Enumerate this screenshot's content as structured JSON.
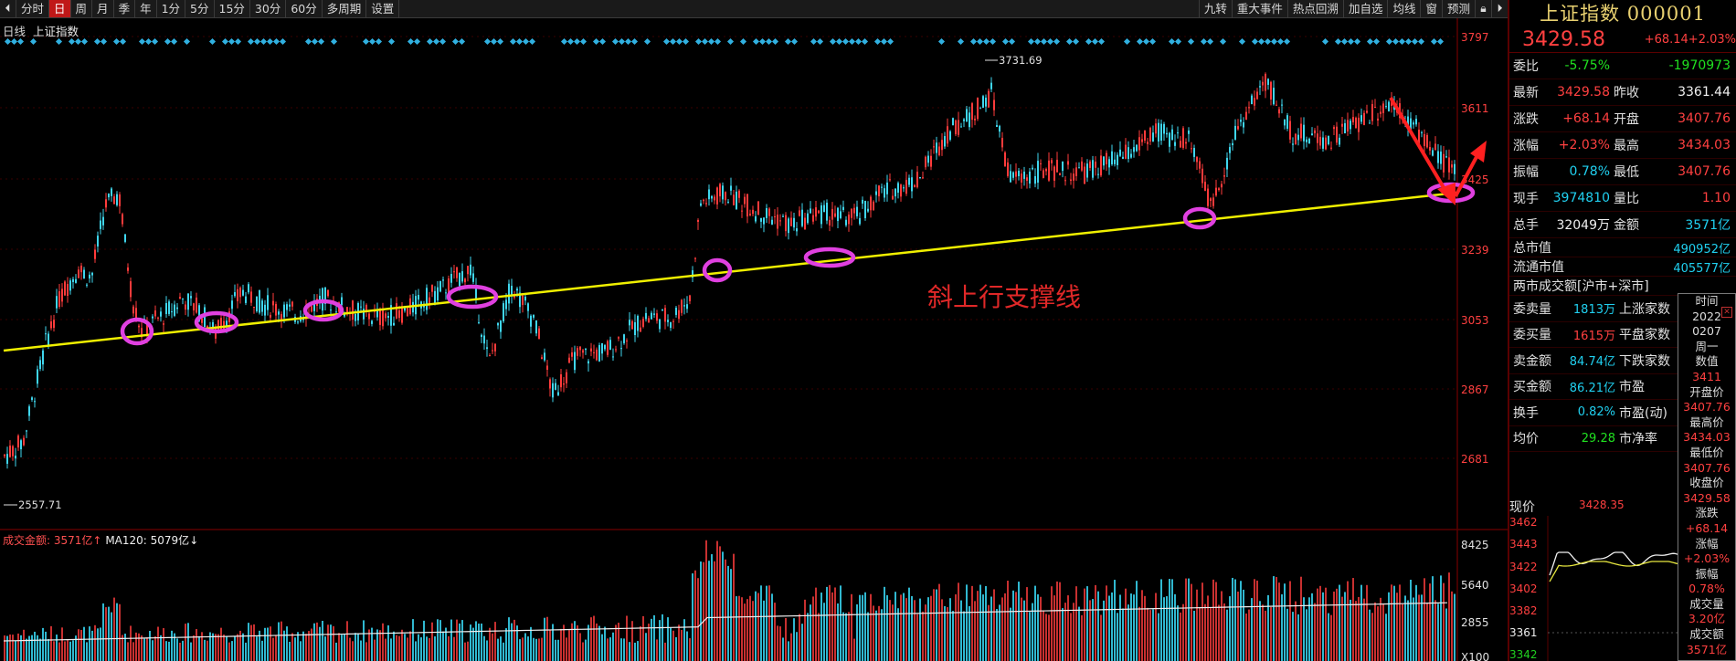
{
  "toolbar": {
    "items": [
      "分时",
      "日",
      "周",
      "月",
      "季",
      "年",
      "1分",
      "5分",
      "15分",
      "30分",
      "60分",
      "多周期",
      "设置"
    ],
    "active_index": 1,
    "right_items": [
      "九转",
      "重大事件",
      "热点回溯",
      "加自选",
      "均线",
      "窗",
      "预测"
    ]
  },
  "chart": {
    "period_label": "日线",
    "index_label": "上证指数",
    "y_axis_ticks": [
      "3797",
      "3611",
      "3425",
      "3239",
      "3053",
      "2867",
      "2681"
    ],
    "high_label": "3731.69",
    "low_label": "2557.71",
    "annotation": "斜上行支撑线",
    "volume_label_name": "成交金额:",
    "volume_label_value": "3571亿",
    "volume_label_arrow": "↑",
    "ma_label": "MA120: 5079亿",
    "ma_label_arrow": "↓",
    "volume_ticks": [
      "8425",
      "5640",
      "2855",
      "X100"
    ],
    "colors": {
      "up": "#ff3b3b",
      "down": "#3fd6ee",
      "support_line": "#f0f000",
      "circle": "#e040e0",
      "arrow": "#ff2020"
    }
  },
  "chart_data": {
    "type": "candlestick",
    "title": "上证指数",
    "period": "日线",
    "ylim": [
      2557.71,
      3797
    ],
    "high": 3731.69,
    "low": 2557.71,
    "annotation": "斜上行支撑线"
  },
  "panel": {
    "title": "上证指数 000001",
    "price": "3429.58",
    "change": "+68.14",
    "change_pct": "+2.03%",
    "quote_rows": [
      {
        "l1": "委比",
        "v1": "-5.75%",
        "c1": "grn",
        "l2": "",
        "v2": "-1970973",
        "c2": "grn"
      },
      {
        "l1": "最新",
        "v1": "3429.58",
        "c1": "red",
        "l2": "昨收",
        "v2": "3361.44",
        "c2": "wht"
      },
      {
        "l1": "涨跌",
        "v1": "+68.14",
        "c1": "red",
        "l2": "开盘",
        "v2": "3407.76",
        "c2": "red"
      },
      {
        "l1": "涨幅",
        "v1": "+2.03%",
        "c1": "red",
        "l2": "最高",
        "v2": "3434.03",
        "c2": "red"
      },
      {
        "l1": "振幅",
        "v1": "0.78%",
        "c1": "cyn",
        "l2": "最低",
        "v2": "3407.76",
        "c2": "red"
      },
      {
        "l1": "现手",
        "v1": "3974810",
        "c1": "cyn",
        "l2": "量比",
        "v2": "1.10",
        "c2": "red"
      },
      {
        "l1": "总手",
        "v1": "32049万",
        "c1": "wht",
        "l2": "金额",
        "v2": "3571亿",
        "c2": "cyn"
      }
    ],
    "market_rows": [
      {
        "l": "总市值",
        "v": "490952亿",
        "c": "cyn"
      },
      {
        "l": "流通市值",
        "v": "405577亿",
        "c": "cyn"
      },
      {
        "l": "两市成交额[沪市+深市]",
        "v": "",
        "c": "wht"
      }
    ],
    "depth_rows": [
      {
        "l1": "委卖量",
        "v1": "1813万",
        "c1": "cyn",
        "l2": "上涨家数",
        "v2": ""
      },
      {
        "l1": "委买量",
        "v1": "1615万",
        "c1": "red",
        "l2": "平盘家数",
        "v2": ""
      },
      {
        "l1": "卖金额",
        "v1": "84.74亿",
        "c1": "cyn",
        "l2": "下跌家数",
        "v2": ""
      },
      {
        "l1": "买金额",
        "v1": "86.21亿",
        "c1": "cyn",
        "l2": "市盈",
        "v2": ""
      },
      {
        "l1": "换手",
        "v1": "0.82%",
        "c1": "cyn",
        "l2": "市盈(动)",
        "v2": ""
      },
      {
        "l1": "均价",
        "v1": "29.28",
        "c1": "grn",
        "l2": "市净率",
        "v2": ""
      }
    ],
    "mini": {
      "label": "现价",
      "price": "3428.35",
      "date": "2022",
      "ticks": [
        "3462",
        "3443",
        "3422",
        "3402",
        "3382",
        "3361",
        "3342"
      ]
    }
  },
  "tooltip": {
    "items": [
      {
        "k": "时间",
        "v": ""
      },
      {
        "k": "2022",
        "v": ""
      },
      {
        "k": "0207",
        "v": ""
      },
      {
        "k": "周一",
        "v": ""
      },
      {
        "k": "数值",
        "v": "3411"
      },
      {
        "k": "开盘价",
        "v": "3407.76"
      },
      {
        "k": "最高价",
        "v": "3434.03"
      },
      {
        "k": "最低价",
        "v": "3407.76"
      },
      {
        "k": "收盘价",
        "v": "3429.58"
      },
      {
        "k": "涨跌",
        "v": "+68.14"
      },
      {
        "k": "涨幅",
        "v": "+2.03%"
      },
      {
        "k": "振幅",
        "v": "0.78%"
      },
      {
        "k": "成交量",
        "v": "3.20亿"
      },
      {
        "k": "成交额",
        "v": "3571亿"
      }
    ]
  }
}
